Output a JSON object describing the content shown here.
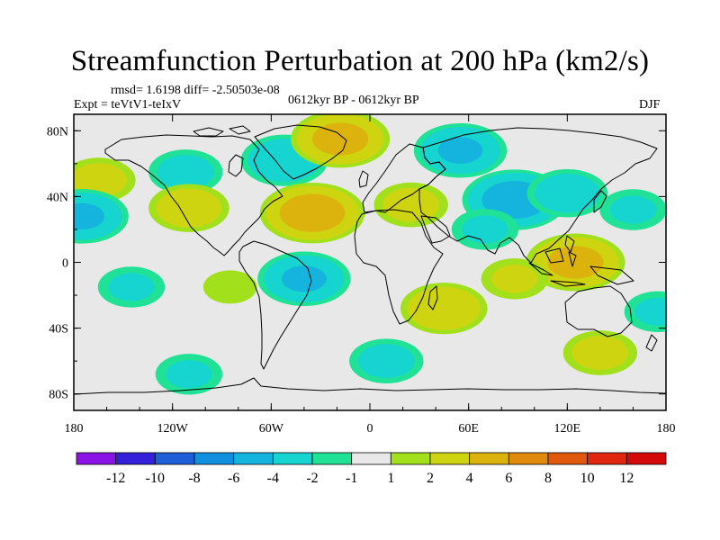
{
  "figure": {
    "title": "Streamfunction Perturbation at 200 hPa (km2/s)",
    "stats": "rmsd= 1.6198 diff= -2.50503e-08",
    "experiment": "Expt = teVtV1-teIxV",
    "period": "0612kyr BP - 0612kyr BP",
    "season": "DJF"
  },
  "chart_data": {
    "type": "heatmap",
    "projection": "cylindrical-equidistant",
    "variable": "Streamfunction Perturbation",
    "level": "200 hPa",
    "units": "km2/s",
    "xlim": [
      -180,
      180
    ],
    "ylim": [
      -90,
      90
    ],
    "x_ticks": [
      {
        "value": -180,
        "label": "180"
      },
      {
        "value": -120,
        "label": "120W"
      },
      {
        "value": -60,
        "label": "60W"
      },
      {
        "value": 0,
        "label": "0"
      },
      {
        "value": 60,
        "label": "60E"
      },
      {
        "value": 120,
        "label": "120E"
      },
      {
        "value": 180,
        "label": "180"
      }
    ],
    "y_ticks": [
      {
        "value": 80,
        "label": "80N"
      },
      {
        "value": 40,
        "label": "40N"
      },
      {
        "value": 0,
        "label": "0"
      },
      {
        "value": -40,
        "label": "40S"
      },
      {
        "value": -80,
        "label": "80S"
      }
    ],
    "levels": [
      -12,
      -10,
      -8,
      -6,
      -4,
      -2,
      -1,
      1,
      2,
      4,
      6,
      8,
      10,
      12
    ],
    "level_labels": [
      "-12",
      "-10",
      "-8",
      "-6",
      "-4",
      "-2",
      "-1",
      "1",
      "2",
      "4",
      "6",
      "8",
      "10",
      "12"
    ],
    "colors": [
      "#8a14e6",
      "#3320d8",
      "#1e5fd8",
      "#1190e0",
      "#15b4de",
      "#16d4d0",
      "#20e296",
      "#e8e8e8",
      "#a2e01c",
      "#cfd410",
      "#dcb20c",
      "#df8a0c",
      "#e0580c",
      "#e0260f",
      "#d40a0a"
    ],
    "anomalies": [
      {
        "lon": -52,
        "lat": 62,
        "value": -3.5
      },
      {
        "lon": -112,
        "lat": 55,
        "value": -2.5
      },
      {
        "lon": -165,
        "lat": 50,
        "value": 2.5
      },
      {
        "lon": -18,
        "lat": 75,
        "value": 4.5
      },
      {
        "lon": -35,
        "lat": 30,
        "value": 5.0
      },
      {
        "lon": -110,
        "lat": 33,
        "value": 3.0
      },
      {
        "lon": 25,
        "lat": 35,
        "value": 2.5
      },
      {
        "lon": 55,
        "lat": 68,
        "value": -4.0
      },
      {
        "lon": 88,
        "lat": 38,
        "value": -5.0
      },
      {
        "lon": 70,
        "lat": 20,
        "value": -2.0
      },
      {
        "lon": -175,
        "lat": 28,
        "value": -4.0
      },
      {
        "lon": 160,
        "lat": 32,
        "value": -2.0
      },
      {
        "lon": 120,
        "lat": 42,
        "value": -3.0
      },
      {
        "lon": 125,
        "lat": 0,
        "value": 4.5
      },
      {
        "lon": 88,
        "lat": -10,
        "value": 2.0
      },
      {
        "lon": -40,
        "lat": -10,
        "value": -4.0
      },
      {
        "lon": -145,
        "lat": -15,
        "value": -2.0
      },
      {
        "lon": 45,
        "lat": -28,
        "value": 3.5
      },
      {
        "lon": 175,
        "lat": -30,
        "value": -2.0
      },
      {
        "lon": 10,
        "lat": -60,
        "value": -2.5
      },
      {
        "lon": 140,
        "lat": -55,
        "value": 2.5
      },
      {
        "lon": -110,
        "lat": -68,
        "value": -2.0
      },
      {
        "lon": -85,
        "lat": -15,
        "value": 1.2
      }
    ]
  }
}
